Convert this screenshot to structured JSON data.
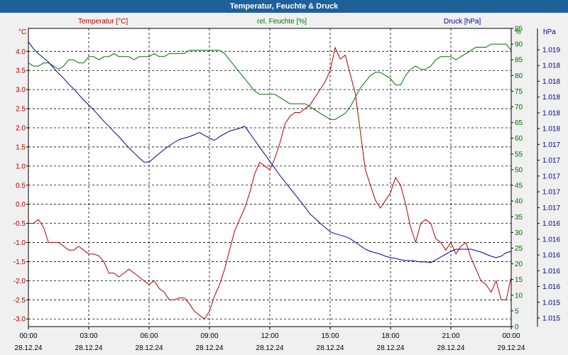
{
  "window": {
    "title": "Temperatur, Feuchte & Druck"
  },
  "colors": {
    "temperature": "#b00000",
    "humidity": "#007000",
    "pressure": "#00009a",
    "titlebar": "#1f5f9a",
    "plot_bg": "#ffffff",
    "grid": "#000000"
  },
  "chart_data": {
    "type": "line",
    "title": "Temperatur, Feuchte & Druck",
    "grid": "dashed",
    "series": [
      {
        "name": "Temperatur [°C]",
        "unit_label": "°C",
        "axis": "left",
        "color": "#b00000",
        "x": [
          0,
          0.25,
          0.5,
          0.75,
          1,
          1.25,
          1.5,
          1.75,
          2,
          2.25,
          2.5,
          2.75,
          3,
          3.25,
          3.5,
          3.75,
          4,
          4.25,
          4.5,
          4.75,
          5,
          5.25,
          5.5,
          5.75,
          6,
          6.25,
          6.5,
          6.75,
          7,
          7.25,
          7.5,
          7.75,
          8,
          8.25,
          8.5,
          8.75,
          9,
          9.25,
          9.5,
          9.75,
          10,
          10.25,
          10.5,
          10.75,
          11,
          11.25,
          11.5,
          11.75,
          12,
          12.25,
          12.5,
          12.75,
          13,
          13.25,
          13.5,
          13.75,
          14,
          14.25,
          14.5,
          14.75,
          15,
          15.25,
          15.5,
          15.75,
          16,
          16.25,
          16.5,
          16.75,
          17,
          17.25,
          17.5,
          17.75,
          18,
          18.25,
          18.5,
          18.75,
          19,
          19.25,
          19.5,
          19.75,
          20,
          20.25,
          20.5,
          20.75,
          21,
          21.25,
          21.5,
          21.75,
          22,
          22.25,
          22.5,
          22.75,
          23,
          23.25,
          23.5,
          23.75,
          24
        ],
        "values": [
          -0.5,
          -0.5,
          -0.4,
          -0.6,
          -1.0,
          -1.0,
          -1.0,
          -1.1,
          -1.2,
          -1.2,
          -1.1,
          -1.2,
          -1.3,
          -1.3,
          -1.35,
          -1.5,
          -1.8,
          -1.8,
          -1.9,
          -1.8,
          -1.7,
          -1.8,
          -1.9,
          -2.0,
          -2.1,
          -2.0,
          -2.2,
          -2.3,
          -2.5,
          -2.5,
          -2.45,
          -2.45,
          -2.6,
          -2.8,
          -2.9,
          -3.0,
          -2.8,
          -2.4,
          -2.1,
          -1.7,
          -1.2,
          -0.7,
          -0.4,
          -0.1,
          0.3,
          0.8,
          1.1,
          1.0,
          0.9,
          1.2,
          1.6,
          2.1,
          2.3,
          2.4,
          2.4,
          2.5,
          2.6,
          2.8,
          3.0,
          3.2,
          3.5,
          4.1,
          3.8,
          3.9,
          3.4,
          2.9,
          1.9,
          0.9,
          0.5,
          0.1,
          -0.1,
          0.1,
          0.3,
          0.7,
          0.5,
          0.0,
          -0.6,
          -1.0,
          -0.5,
          -0.4,
          -0.5,
          -0.9,
          -1.0,
          -1.2,
          -1.0,
          -1.3,
          -1.1,
          -1.0,
          -1.4,
          -1.7,
          -2.0,
          -2.1,
          -2.3,
          -2.0,
          -2.5,
          -2.5,
          -1.9
        ],
        "ylim": [
          -3.2,
          4.6
        ],
        "ticks": [
          "4.0",
          "3.5",
          "3.0",
          "2.5",
          "2.0",
          "1.5",
          "1.0",
          "0.5",
          "0.0",
          "-0.5",
          "-1.0",
          "-1.5",
          "-2.0",
          "-2.5",
          "-3.0"
        ]
      },
      {
        "name": "rel. Feuchte [%]",
        "unit_label": "%",
        "axis": "right",
        "color": "#007000",
        "x": [
          0,
          0.25,
          0.5,
          0.75,
          1,
          1.25,
          1.5,
          1.75,
          2,
          2.25,
          2.5,
          2.75,
          3,
          3.25,
          3.5,
          3.75,
          4,
          4.25,
          4.5,
          4.75,
          5,
          5.25,
          5.5,
          5.75,
          6,
          6.25,
          6.5,
          6.75,
          7,
          7.25,
          7.5,
          7.75,
          8,
          8.25,
          8.5,
          8.75,
          9,
          9.25,
          9.5,
          9.75,
          10,
          10.25,
          10.5,
          10.75,
          11,
          11.25,
          11.5,
          11.75,
          12,
          12.25,
          12.5,
          12.75,
          13,
          13.25,
          13.5,
          13.75,
          14,
          14.25,
          14.5,
          14.75,
          15,
          15.25,
          15.5,
          15.75,
          16,
          16.25,
          16.5,
          16.75,
          17,
          17.25,
          17.5,
          17.75,
          18,
          18.25,
          18.5,
          18.75,
          19,
          19.25,
          19.5,
          19.75,
          20,
          20.25,
          20.5,
          20.75,
          21,
          21.25,
          21.5,
          21.75,
          22,
          22.25,
          22.5,
          22.75,
          23,
          23.25,
          23.5,
          23.75,
          24
        ],
        "values": [
          84,
          83,
          83,
          84,
          84,
          83,
          82,
          83,
          85,
          85,
          84,
          84,
          86,
          86,
          85,
          86,
          86,
          87,
          86,
          86,
          86,
          85,
          86,
          86,
          86,
          87,
          86,
          86,
          87,
          87,
          87,
          87,
          88,
          88,
          88,
          88,
          88,
          88,
          88,
          87,
          85,
          83,
          81,
          79,
          77,
          75,
          74,
          74,
          74,
          74,
          73,
          72,
          71,
          71,
          71,
          71,
          70,
          69,
          68,
          67,
          66,
          66,
          67,
          68,
          70,
          73,
          76,
          78,
          80,
          81,
          81,
          80,
          79,
          77,
          77,
          80,
          82,
          83,
          82,
          82,
          83,
          85,
          86,
          86,
          86,
          85,
          86,
          87,
          88,
          89,
          89,
          89,
          90,
          90,
          90,
          90,
          88
        ],
        "ylim": [
          0,
          95
        ],
        "ticks": [
          "95",
          "90",
          "85",
          "80",
          "75",
          "70",
          "65",
          "60",
          "55",
          "50",
          "45",
          "40",
          "35",
          "30",
          "25",
          "20",
          "15",
          "10",
          "5",
          "0"
        ]
      },
      {
        "name": "Druck [hPa]",
        "unit_label": "hPa",
        "axis": "right-outer",
        "color": "#00009a",
        "x": [
          0,
          0.25,
          0.5,
          0.75,
          1,
          1.25,
          1.5,
          1.75,
          2,
          2.25,
          2.5,
          2.75,
          3,
          3.25,
          3.5,
          3.75,
          4,
          4.25,
          4.5,
          4.75,
          5,
          5.25,
          5.5,
          5.75,
          6,
          6.25,
          6.5,
          6.75,
          7,
          7.25,
          7.5,
          7.75,
          8,
          8.25,
          8.5,
          8.75,
          9,
          9.25,
          9.5,
          9.75,
          10,
          10.25,
          10.5,
          10.75,
          11,
          11.25,
          11.5,
          11.75,
          12,
          12.25,
          12.5,
          12.75,
          13,
          13.25,
          13.5,
          13.75,
          14,
          14.25,
          14.5,
          14.75,
          15,
          15.25,
          15.5,
          15.75,
          16,
          16.25,
          16.5,
          16.75,
          17,
          17.25,
          17.5,
          17.75,
          18,
          18.25,
          18.5,
          18.75,
          19,
          19.25,
          19.5,
          19.75,
          20,
          20.25,
          20.5,
          20.75,
          21,
          21.25,
          21.5,
          21.75,
          22,
          22.25,
          22.5,
          22.75,
          23,
          23.25,
          23.5,
          23.75,
          24
        ],
        "values": [
          1018.95,
          1018.85,
          1018.78,
          1018.72,
          1018.66,
          1018.58,
          1018.5,
          1018.43,
          1018.35,
          1018.28,
          1018.2,
          1018.12,
          1018.05,
          1017.98,
          1017.9,
          1017.82,
          1017.75,
          1017.67,
          1017.6,
          1017.52,
          1017.44,
          1017.37,
          1017.3,
          1017.24,
          1017.24,
          1017.3,
          1017.36,
          1017.42,
          1017.47,
          1017.52,
          1017.56,
          1017.58,
          1017.6,
          1017.63,
          1017.66,
          1017.62,
          1017.58,
          1017.55,
          1017.6,
          1017.64,
          1017.68,
          1017.7,
          1017.72,
          1017.75,
          1017.65,
          1017.55,
          1017.45,
          1017.35,
          1017.25,
          1017.15,
          1017.05,
          1016.96,
          1016.87,
          1016.78,
          1016.69,
          1016.6,
          1016.5,
          1016.44,
          1016.37,
          1016.31,
          1016.25,
          1016.22,
          1016.2,
          1016.18,
          1016.15,
          1016.1,
          1016.05,
          1016.0,
          1015.97,
          1015.95,
          1015.93,
          1015.9,
          1015.88,
          1015.87,
          1015.85,
          1015.84,
          1015.84,
          1015.83,
          1015.82,
          1015.82,
          1015.81,
          1015.85,
          1015.89,
          1015.93,
          1015.97,
          1016.0,
          1016.0,
          1016.0,
          1016.0,
          1015.98,
          1015.96,
          1015.93,
          1015.9,
          1015.88,
          1015.9,
          1015.95,
          1015.97
        ],
        "ylim": [
          1014.9,
          1019.14
        ],
        "ticks": [
          "1.019",
          "1.018",
          "1.018",
          "1.018",
          "1.018",
          "1.018",
          "1.017",
          "1.017",
          "1.017",
          "1.017",
          "1.017",
          "1.016",
          "1.016",
          "1.016",
          "1.016",
          "1.016",
          "1.015",
          "1.015"
        ]
      }
    ],
    "x_axis": {
      "xlim": [
        0,
        24
      ],
      "times": [
        "00:00",
        "03:00",
        "06:00",
        "09:00",
        "12:00",
        "15:00",
        "18:00",
        "21:00",
        "00:00"
      ],
      "dates": [
        "28.12.24",
        "28.12.24",
        "28.12.24",
        "28.12.24",
        "28.12.24",
        "28.12.24",
        "28.12.24",
        "28.12.24",
        "29.12.24"
      ]
    }
  }
}
